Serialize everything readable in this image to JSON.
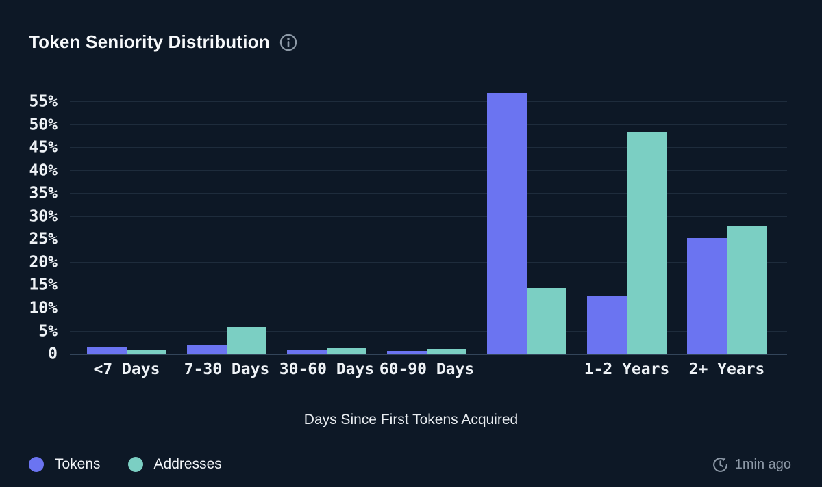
{
  "header": {
    "title": "Token Seniority Distribution"
  },
  "chart_data": {
    "type": "bar",
    "title": "Token Seniority Distribution",
    "xlabel": "Days Since First Tokens Acquired",
    "ylabel": "",
    "categories": [
      "<7 Days",
      "7-30 Days",
      "30-60 Days",
      "60-90 Days",
      "",
      "1-2 Years",
      "2+ Years"
    ],
    "series": [
      {
        "name": "Tokens",
        "color": "#6b74f1",
        "values": [
          1.5,
          2.0,
          1.0,
          0.7,
          57.0,
          12.7,
          25.3
        ]
      },
      {
        "name": "Addresses",
        "color": "#7bcfc3",
        "values": [
          1.0,
          6.0,
          1.4,
          1.2,
          14.5,
          48.5,
          28.0
        ]
      }
    ],
    "ylim": [
      0,
      57.9
    ],
    "yticks": [
      0,
      5,
      10,
      15,
      20,
      25,
      30,
      35,
      40,
      45,
      50,
      55
    ],
    "ytick_labels": [
      "0",
      "5%",
      "10%",
      "15%",
      "20%",
      "25%",
      "30%",
      "35%",
      "40%",
      "45%",
      "50%",
      "55%"
    ],
    "grid": "horizontal",
    "legend_position": "bottom-left"
  },
  "footer": {
    "legend": [
      {
        "label": "Tokens"
      },
      {
        "label": "Addresses"
      }
    ],
    "updated": "1min ago"
  },
  "colors": {
    "background": "#0d1826",
    "gridline": "#1e2c3c",
    "axis_line": "#33455a",
    "tokens": "#6b74f1",
    "addresses": "#7bcfc3",
    "muted_text": "#8c98a6",
    "text": "#eef2f6"
  },
  "icons": {
    "info": "info-icon",
    "updated": "history-clock-icon"
  }
}
